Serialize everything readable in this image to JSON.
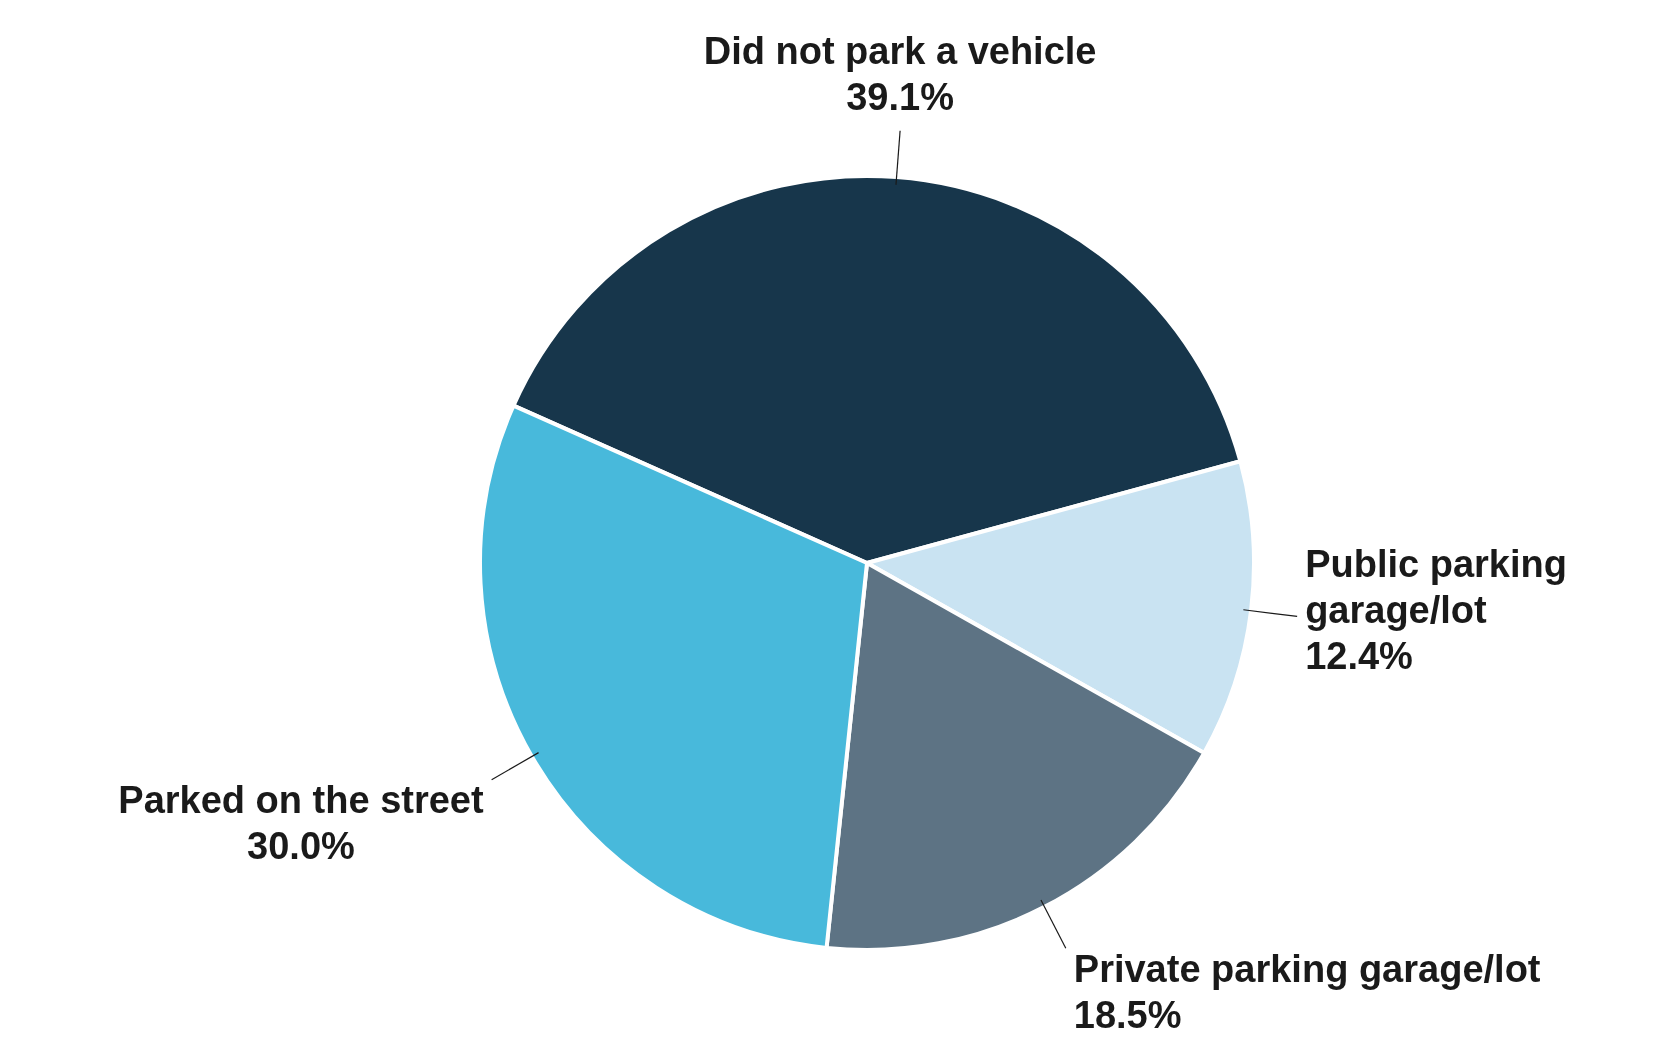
{
  "chart_data": {
    "type": "pie",
    "categories": [
      "Did not park a vehicle",
      "Public parking garage/lot",
      "Private parking garage/lot",
      "Parked on the street"
    ],
    "values": [
      39.1,
      12.4,
      18.5,
      30.0
    ],
    "value_labels": [
      "39.1%",
      "12.4%",
      "18.5%",
      "30.0%"
    ],
    "colors": [
      "#17364b",
      "#c9e3f2",
      "#5d7384",
      "#48b9db"
    ],
    "legend": false
  }
}
